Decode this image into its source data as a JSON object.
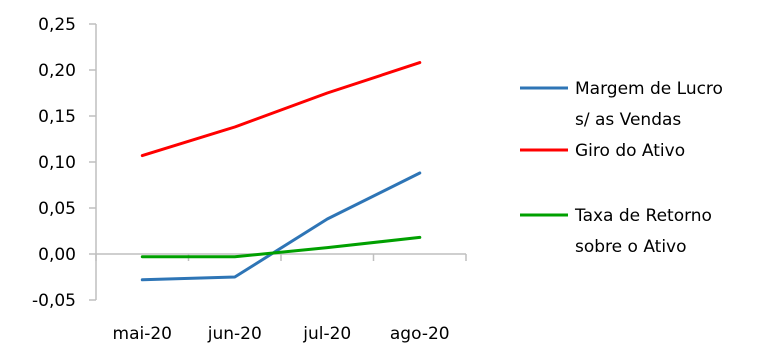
{
  "chart_data": {
    "type": "line",
    "categories": [
      "mai-20",
      "jun-20",
      "jul-20",
      "ago-20"
    ],
    "ylim": [
      -0.05,
      0.25
    ],
    "yticks": [
      -0.05,
      0.0,
      0.05,
      0.1,
      0.15,
      0.2,
      0.25
    ],
    "ytick_labels": [
      "-0,05",
      "0,00",
      "0,05",
      "0,10",
      "0,15",
      "0,20",
      "0,25"
    ],
    "grid": false,
    "legend_position": "right",
    "series": [
      {
        "name": "Margem de Lucro s/ as Vendas",
        "legend_lines": [
          "Margem de Lucro",
          "s/ as Vendas"
        ],
        "color": "#2E75B6",
        "values": [
          -0.028,
          -0.025,
          0.038,
          0.088
        ]
      },
      {
        "name": "Giro do Ativo",
        "legend_lines": [
          "Giro do Ativo"
        ],
        "color": "#FF0000",
        "values": [
          0.107,
          0.138,
          0.175,
          0.208
        ]
      },
      {
        "name": "Taxa de Retorno sobre o Ativo",
        "legend_lines": [
          "Taxa de Retorno",
          "sobre o Ativo"
        ],
        "color": "#00A000",
        "values": [
          -0.003,
          -0.003,
          0.007,
          0.018
        ]
      }
    ]
  }
}
